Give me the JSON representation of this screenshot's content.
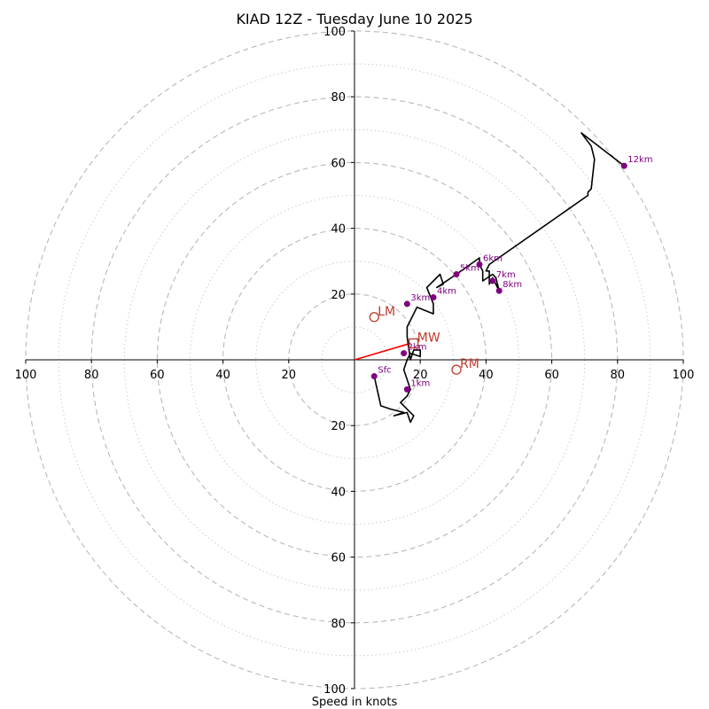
{
  "chart_data": {
    "type": "line",
    "title": "KIAD 12Z - Tuesday June 10 2025",
    "xlabel": "Speed in knots",
    "ylabel": "",
    "xlim": [
      -100,
      100
    ],
    "ylim": [
      -100,
      100
    ],
    "rings_major": [
      20,
      40,
      60,
      80,
      100
    ],
    "rings_minor": [
      10,
      30,
      50,
      70,
      90
    ],
    "tick_labels": {
      "x_left": [
        "100",
        "80",
        "60",
        "40",
        "20"
      ],
      "x_right": [
        "20",
        "40",
        "60",
        "80",
        "100"
      ],
      "y_top": [
        "100",
        "80",
        "60",
        "40",
        "20"
      ],
      "y_bottom": [
        "20",
        "40",
        "60",
        "80",
        "100"
      ]
    },
    "series": [
      {
        "color": "#000000",
        "u": [
          6,
          8,
          11,
          15,
          12,
          16,
          17,
          18,
          17,
          14,
          16,
          17,
          16,
          15,
          16,
          17,
          20,
          20,
          18,
          17,
          16,
          16,
          19,
          24,
          24,
          22,
          26,
          27,
          25,
          31,
          38,
          38,
          39,
          39,
          42,
          43,
          44,
          42,
          41,
          41,
          40,
          41,
          71,
          71,
          72,
          73,
          72,
          69,
          82
        ],
        "v": [
          -5,
          -14,
          -15,
          -16,
          -17,
          -16,
          -19,
          -17,
          -16,
          -13,
          -11,
          -9,
          -6,
          -3,
          0,
          2,
          1,
          3,
          3,
          0,
          7,
          10,
          16,
          14,
          17,
          22,
          26,
          23,
          22,
          26,
          31,
          29,
          27,
          24,
          26,
          25,
          21,
          25,
          23,
          27,
          27,
          29,
          50,
          51,
          52,
          61,
          65,
          69,
          59
        ]
      }
    ],
    "height_markers": [
      {
        "label": "Sfc",
        "u": 6,
        "v": -5
      },
      {
        "label": "1km",
        "u": 16,
        "v": -9
      },
      {
        "label": "2km",
        "u": 15,
        "v": 2
      },
      {
        "label": "3km",
        "u": 16,
        "v": 17
      },
      {
        "label": "4km",
        "u": 24,
        "v": 19
      },
      {
        "label": "5km",
        "u": 31,
        "v": 26
      },
      {
        "label": "6km",
        "u": 38,
        "v": 29
      },
      {
        "label": "7km",
        "u": 42,
        "v": 24
      },
      {
        "label": "8km",
        "u": 44,
        "v": 21
      },
      {
        "label": "12km",
        "u": 82,
        "v": 59
      }
    ],
    "motion_markers": [
      {
        "label": "LM",
        "u": 6,
        "v": 13,
        "shape": "circle"
      },
      {
        "label": "MW",
        "u": 18,
        "v": 5,
        "shape": "square"
      },
      {
        "label": "RM",
        "u": 31,
        "v": -3,
        "shape": "circle"
      }
    ],
    "mean_wind_vector": {
      "u": 17,
      "v": 5
    },
    "colors": {
      "trace": "#000000",
      "height_marker": "#800080",
      "motion_marker": "#c0392b",
      "mean_wind_line": "#ff0000",
      "ring": "#b8b8b8",
      "ring_minor": "#cccccc"
    }
  }
}
